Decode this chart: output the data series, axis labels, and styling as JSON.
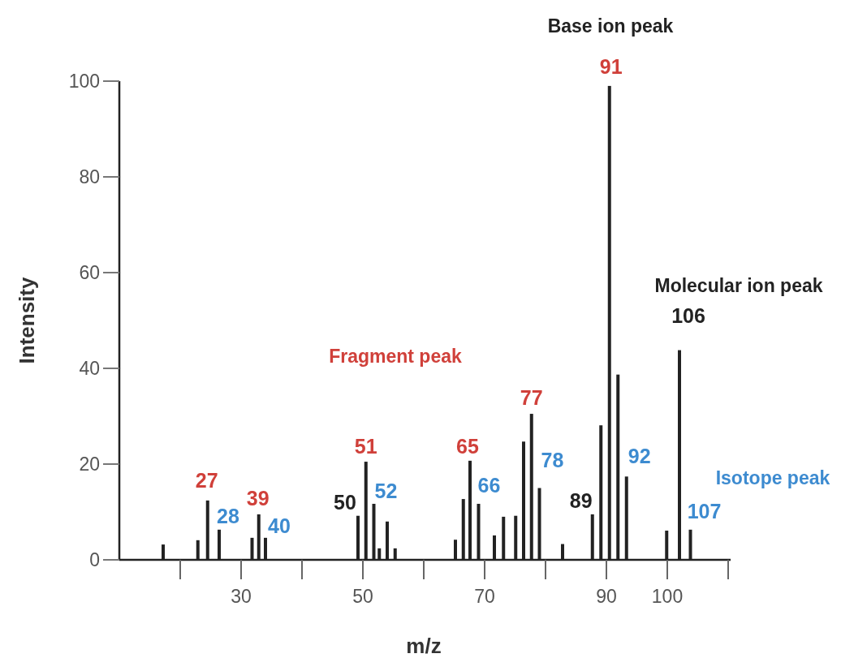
{
  "chart_data": {
    "type": "bar",
    "xlabel": "m/z",
    "ylabel": "Intensity",
    "color": "#222222",
    "x": [
      17.2,
      22.9,
      24.5,
      26.4,
      31.8,
      32.9,
      34.0,
      49.2,
      50.5,
      51.8,
      52.7,
      54.0,
      55.3,
      65.2,
      66.5,
      67.6,
      69.0,
      71.6,
      73.1,
      75.1,
      76.4,
      77.7,
      79.0,
      82.8,
      87.7,
      89.1,
      90.5,
      91.9,
      93.3,
      99.9,
      102.0,
      103.8
    ],
    "values": [
      3.2,
      4.1,
      12.4,
      6.3,
      4.6,
      9.5,
      4.6,
      9.2,
      20.5,
      11.7,
      2.4,
      8.0,
      2.4,
      4.2,
      12.7,
      20.7,
      11.7,
      5.1,
      9.0,
      9.2,
      24.7,
      30.5,
      15.0,
      3.3,
      9.5,
      28.1,
      99,
      38.7,
      17.4,
      6.1,
      43.8,
      6.3
    ],
    "xlim": [
      10,
      110
    ],
    "xticks": [
      30,
      50,
      70,
      90,
      100
    ],
    "ylim": [
      0,
      100
    ],
    "yticks": [
      0,
      20,
      40,
      60,
      80,
      100
    ],
    "grid": false,
    "annotations": [
      "Base ion peak",
      "Molecular ion peak",
      "Fragment peak",
      "Isotope peak",
      {
        "text": "27",
        "x": 24.5,
        "y": 12.4
      },
      {
        "text": "28",
        "x": 26.4,
        "y": 6.3
      },
      {
        "text": "39",
        "x": 32.9,
        "y": 9.5
      },
      {
        "text": "40",
        "x": 34.0,
        "y": 4.6
      },
      {
        "text": "50",
        "x": 49.2,
        "y": 9.2
      },
      {
        "text": "51",
        "x": 50.5,
        "y": 20.5
      },
      {
        "text": "52",
        "x": 51.8,
        "y": 11.7
      },
      {
        "text": "65",
        "x": 67.6,
        "y": 20.7
      },
      {
        "text": "66",
        "x": 69.0,
        "y": 11.7
      },
      {
        "text": "77",
        "x": 77.7,
        "y": 30.5
      },
      {
        "text": "78",
        "x": 79.0,
        "y": 15.0
      },
      {
        "text": "89",
        "x": 87.7,
        "y": 9.5
      },
      {
        "text": "91",
        "x": 90.5,
        "y": 99
      },
      {
        "text": "92",
        "x": 93.3,
        "y": 17.4
      },
      {
        "text": "106",
        "x": 102.0,
        "y": 43.8
      },
      {
        "text": "107",
        "x": 103.8,
        "y": 6.3
      }
    ]
  }
}
